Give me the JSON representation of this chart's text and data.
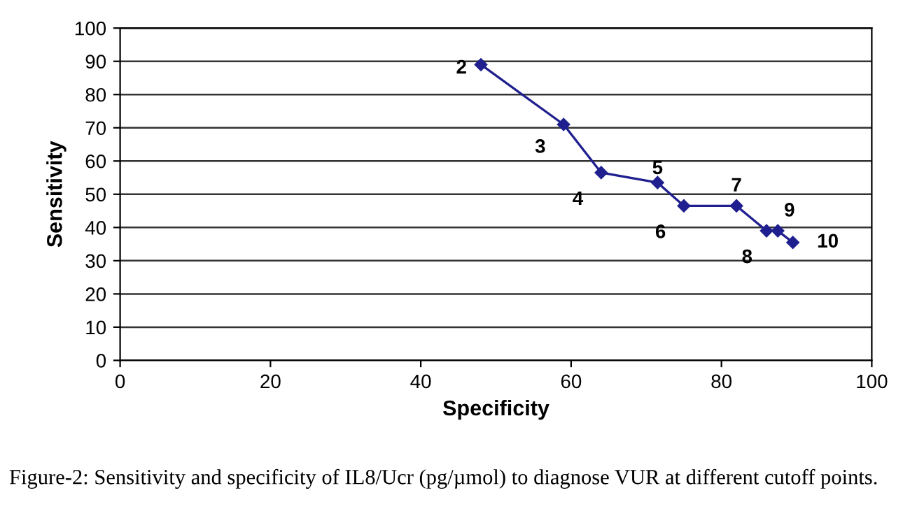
{
  "chart_data": {
    "type": "line",
    "xlabel": "Specificity",
    "ylabel": "Sensitivity",
    "x": [
      48,
      59,
      64,
      71.5,
      75,
      82,
      86,
      87.5,
      89.5
    ],
    "series": [
      {
        "color": "#1f1f8f",
        "values": [
          89,
          71,
          56.5,
          53.5,
          46.5,
          46.5,
          39,
          39,
          35.5
        ]
      }
    ],
    "xlim": [
      0,
      100
    ],
    "ylim": [
      0,
      100
    ],
    "xticks": [
      0,
      20,
      40,
      60,
      80,
      100
    ],
    "yticks": [
      0,
      10,
      20,
      30,
      40,
      50,
      60,
      70,
      80,
      90,
      100
    ],
    "grid": "y",
    "marker": "diamond",
    "line_style": "solid",
    "annotations": [
      {
        "text": "2",
        "x": 48,
        "y": 89
      },
      {
        "text": "3",
        "x": 59,
        "y": 71
      },
      {
        "text": "4",
        "x": 64,
        "y": 56.5
      },
      {
        "text": "5",
        "x": 71.5,
        "y": 53.5
      },
      {
        "text": "6",
        "x": 75,
        "y": 46.5
      },
      {
        "text": "7",
        "x": 82,
        "y": 46.5
      },
      {
        "text": "8",
        "x": 86,
        "y": 39
      },
      {
        "text": "9",
        "x": 87.5,
        "y": 39
      },
      {
        "text": "10",
        "x": 89.5,
        "y": 35.5
      },
      "Figure-2: Sensitivity and specificity of IL8/Ucr (pg/µmol) to diagnose VUR at different cutoff points."
    ]
  }
}
